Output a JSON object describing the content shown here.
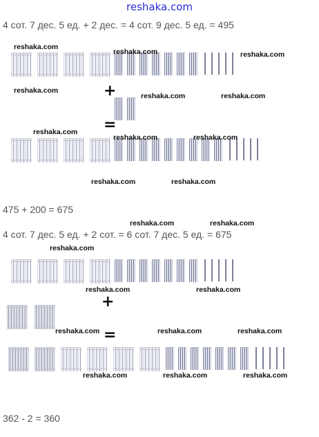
{
  "header": {
    "site": "reshaka.com"
  },
  "equations": {
    "eq1": "4 сот. 7 дес. 5 ед. + 2 дес. = 4 сот. 9 дес. 5 ед. = 495",
    "eq2": "475 + 200 = 675",
    "eq3": "4 сот. 7 дес. 5 ед. + 2 сот. = 6 сот. 7 дес. 5 ед. = 675",
    "eq4": "362 - 2 = 360"
  },
  "operators": {
    "plus": "+",
    "equals": "="
  },
  "watermark": "reshaka.com"
}
